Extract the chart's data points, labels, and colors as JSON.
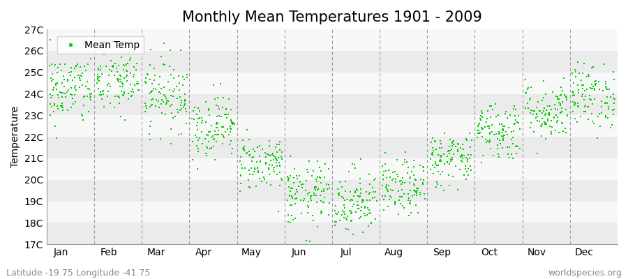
{
  "title": "Monthly Mean Temperatures 1901 - 2009",
  "ylabel": "Temperature",
  "xlabel": "",
  "footnote_left": "Latitude -19.75 Longitude -41.75",
  "footnote_right": "worldspecies.org",
  "legend_label": "Mean Temp",
  "dot_color": "#00CC00",
  "dot_size": 3,
  "ylim_min": 17,
  "ylim_max": 27,
  "ytick_labels": [
    "17C",
    "18C",
    "19C",
    "20C",
    "21C",
    "22C",
    "23C",
    "24C",
    "25C",
    "26C",
    "27C"
  ],
  "months": [
    "Jan",
    "Feb",
    "Mar",
    "Apr",
    "May",
    "Jun",
    "Jul",
    "Aug",
    "Sep",
    "Oct",
    "Nov",
    "Dec"
  ],
  "monthly_means": [
    24.2,
    24.6,
    24.0,
    22.5,
    20.8,
    19.3,
    19.0,
    19.6,
    21.0,
    22.3,
    23.2,
    23.9
  ],
  "monthly_stds": [
    0.85,
    0.85,
    0.85,
    0.75,
    0.65,
    0.75,
    0.8,
    0.65,
    0.65,
    0.7,
    0.7,
    0.75
  ],
  "n_years": 109,
  "background_colors": [
    "#ebebeb",
    "#f8f8f8"
  ],
  "grid_color": "#999999",
  "title_fontsize": 15,
  "axis_fontsize": 10,
  "tick_fontsize": 10,
  "footnote_fontsize": 9,
  "legend_fontsize": 10
}
